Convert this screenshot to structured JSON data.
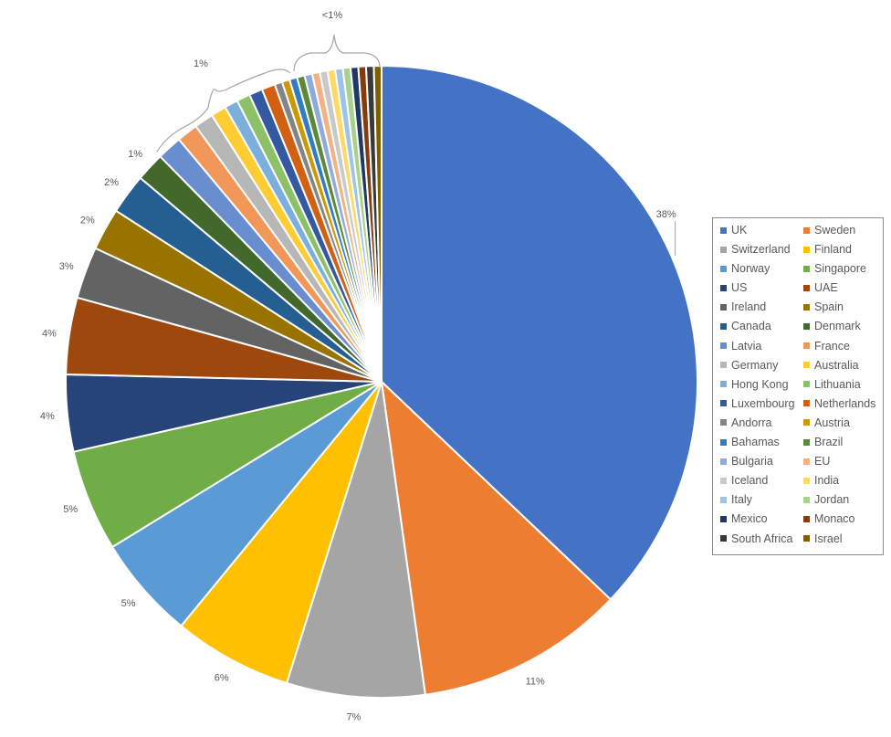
{
  "chart_data": {
    "type": "pie",
    "title": "",
    "start_angle_deg": 0,
    "direction": "clockwise",
    "legend_position": "right",
    "slices": [
      {
        "name": "UK",
        "value": 37.8,
        "label": "38%",
        "color": "#4472C4"
      },
      {
        "name": "Sweden",
        "value": 10.9,
        "label": "11%",
        "color": "#ED7D31"
      },
      {
        "name": "Switzerland",
        "value": 7.2,
        "label": "7%",
        "color": "#A5A5A5"
      },
      {
        "name": "Finland",
        "value": 6.2,
        "label": "6%",
        "color": "#FFC000"
      },
      {
        "name": "Norway",
        "value": 5.4,
        "label": "5%",
        "color": "#5B9BD5"
      },
      {
        "name": "Singapore",
        "value": 5.3,
        "label": "5%",
        "color": "#70AD47"
      },
      {
        "name": "US",
        "value": 4.0,
        "label": "4%",
        "color": "#264478"
      },
      {
        "name": "UAE",
        "value": 4.0,
        "label": "4%",
        "color": "#9E480E"
      },
      {
        "name": "Ireland",
        "value": 2.7,
        "label": "3%",
        "color": "#636363"
      },
      {
        "name": "Spain",
        "value": 2.2,
        "label": "2%",
        "color": "#997300"
      },
      {
        "name": "Canada",
        "value": 2.1,
        "label": "2%",
        "color": "#255E91"
      },
      {
        "name": "Denmark",
        "value": 1.5,
        "label": "1%",
        "color": "#43682B"
      },
      {
        "name": "Latvia",
        "value": 1.3,
        "label": "1%",
        "color": "#698ED0"
      },
      {
        "name": "France",
        "value": 1.1,
        "label": "1%",
        "color": "#F1975A"
      },
      {
        "name": "Germany",
        "value": 1.0,
        "label": "1%",
        "color": "#B7B7B7"
      },
      {
        "name": "Australia",
        "value": 0.8,
        "label": "1%",
        "color": "#FFCD33"
      },
      {
        "name": "Hong Kong",
        "value": 0.7,
        "label": "1%",
        "color": "#7CAFDD"
      },
      {
        "name": "Lithuania",
        "value": 0.7,
        "label": "1%",
        "color": "#8CC168"
      },
      {
        "name": "Luxembourg",
        "value": 0.7,
        "label": "1%",
        "color": "#335AA1"
      },
      {
        "name": "Netherlands",
        "value": 0.7,
        "label": "1%",
        "color": "#D26012"
      },
      {
        "name": "Andorra",
        "value": 0.4,
        "label": "<1%",
        "color": "#848484"
      },
      {
        "name": "Austria",
        "value": 0.4,
        "label": "<1%",
        "color": "#CC9A00"
      },
      {
        "name": "Bahamas",
        "value": 0.4,
        "label": "<1%",
        "color": "#327DC2"
      },
      {
        "name": "Brazil",
        "value": 0.4,
        "label": "<1%",
        "color": "#5A8A39"
      },
      {
        "name": "Bulgaria",
        "value": 0.4,
        "label": "<1%",
        "color": "#8FAADC"
      },
      {
        "name": "EU",
        "value": 0.4,
        "label": "<1%",
        "color": "#F4B183"
      },
      {
        "name": "Iceland",
        "value": 0.4,
        "label": "<1%",
        "color": "#C9C9C9"
      },
      {
        "name": "India",
        "value": 0.4,
        "label": "<1%",
        "color": "#FFD966"
      },
      {
        "name": "Italy",
        "value": 0.4,
        "label": "<1%",
        "color": "#9DC3E6"
      },
      {
        "name": "Jordan",
        "value": 0.4,
        "label": "<1%",
        "color": "#A9D18E"
      },
      {
        "name": "Mexico",
        "value": 0.4,
        "label": "<1%",
        "color": "#203864"
      },
      {
        "name": "Monaco",
        "value": 0.4,
        "label": "<1%",
        "color": "#843C0C"
      },
      {
        "name": "South Africa",
        "value": 0.4,
        "label": "<1%",
        "color": "#3B3838"
      },
      {
        "name": "Israel",
        "value": 0.4,
        "label": "<1%",
        "color": "#7F6000"
      }
    ],
    "group_labels": [
      "1%",
      "<1%"
    ]
  }
}
